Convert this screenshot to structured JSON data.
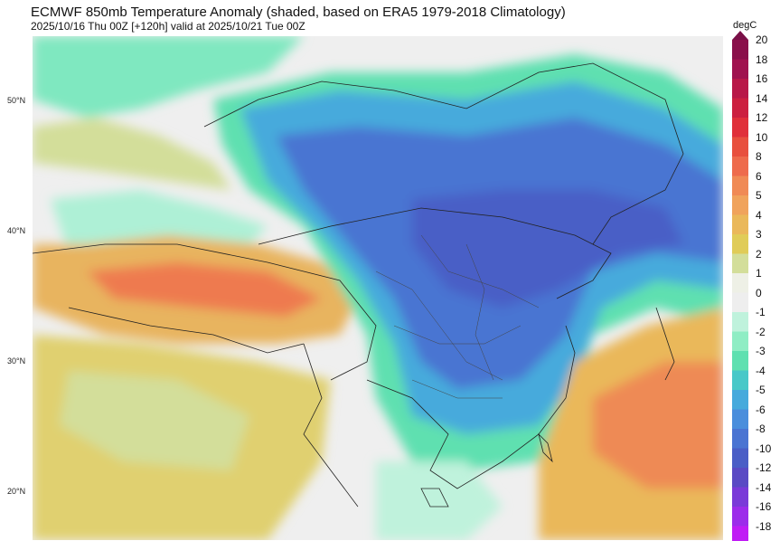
{
  "title": "ECMWF 850mb Temperature Anomaly (shaded, based on ERA5 1979-2018 Climatology)",
  "subtitle": "2025/10/16 Thu 00Z [+120h] valid at 2025/10/21 Tue 00Z",
  "latitude_labels": [
    "50°N",
    "40°N",
    "30°N",
    "20°N"
  ],
  "colorbar": {
    "unit": "degC",
    "labels": [
      "20",
      "18",
      "16",
      "14",
      "12",
      "10",
      "8",
      "6",
      "5",
      "4",
      "3",
      "2",
      "1",
      "0",
      "-1",
      "-2",
      "-3",
      "-4",
      "-5",
      "-6",
      "-8",
      "-10",
      "-12",
      "-14",
      "-16",
      "-18"
    ],
    "colors": [
      "#8a0f4a",
      "#a0124f",
      "#b81848",
      "#cc2040",
      "#e0303a",
      "#e8503e",
      "#ee6b4c",
      "#f08a55",
      "#f0a35c",
      "#eab85a",
      "#e0cc58",
      "#d3de9a",
      "#eef0e6",
      "#eeeeee",
      "#bff2dc",
      "#8fedc4",
      "#5fe0b0",
      "#48c8c8",
      "#46aadc",
      "#4a8edc",
      "#4a74d2",
      "#4a5ec6",
      "#5a4ac4",
      "#7a3ad8",
      "#9c2cea",
      "#c01cf5"
    ],
    "max_color": "#7a1048"
  },
  "map": {
    "projection": "East Asia region, approx. 17°N–55°N",
    "field": "850mb temperature anomaly (degC)"
  }
}
